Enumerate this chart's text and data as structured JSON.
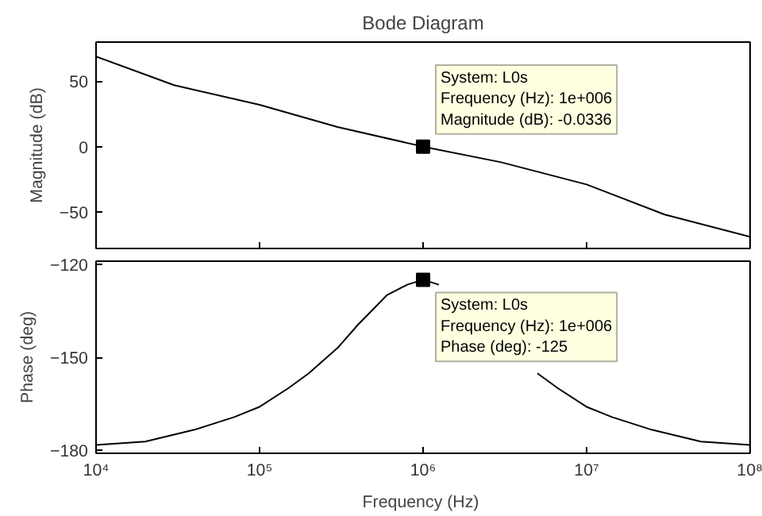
{
  "chart_data": [
    {
      "type": "line",
      "title": "Bode Diagram",
      "ylabel": "Magnitude (dB)",
      "tick_labels": "y",
      "log": "x",
      "grid": false,
      "xlim": [
        10000,
        100000000
      ],
      "xticks": [
        {
          "value": 10000,
          "label": null
        },
        {
          "value": 100000,
          "label": null
        },
        {
          "value": 1000000,
          "label": null
        },
        {
          "value": 10000000,
          "label": null
        },
        {
          "value": 100000000,
          "label": null
        }
      ],
      "ylim": [
        -78,
        80
      ],
      "yticks": [
        -50,
        0,
        50
      ],
      "series": [
        {
          "color": "#000000",
          "x": [
            10000,
            30000,
            100000,
            300000,
            1000000,
            3000000,
            10000000,
            30000000,
            100000000
          ],
          "values": [
            69,
            47,
            32,
            15,
            0,
            -12,
            -29,
            -52,
            -69
          ]
        },
        {
          "type": "scatter",
          "marker": "square",
          "color": "#000000",
          "x": [
            1000000
          ],
          "values": [
            -0.0336
          ]
        }
      ],
      "annotations": [
        {
          "text": "System: L0s\nFrequency (Hz): 1e+006\nMagnitude (dB): -0.0336",
          "x": 1000000,
          "y": -0.0336
        }
      ]
    },
    {
      "type": "line",
      "xlabel": "Frequency  (Hz)",
      "ylabel": "Phase (deg)",
      "log": "x",
      "grid": false,
      "xlim": [
        10000,
        100000000
      ],
      "xticks": [
        {
          "value": 10000,
          "label": "10⁴"
        },
        {
          "value": 100000,
          "label": "10⁵"
        },
        {
          "value": 1000000,
          "label": "10⁶"
        },
        {
          "value": 10000000,
          "label": "10⁷"
        },
        {
          "value": 100000000,
          "label": "10⁸"
        }
      ],
      "ylim": [
        -181,
        -119
      ],
      "yticks": [
        -180,
        -150,
        -120
      ],
      "series": [
        {
          "color": "#000000",
          "x": [
            10000,
            20000,
            40000,
            70000,
            100000,
            150000,
            200000,
            300000,
            400000,
            600000,
            800000,
            1000000,
            1250000,
            1670000,
            2500000,
            3330000,
            5000000,
            6670000,
            10000000,
            14300000,
            25000000,
            50000000,
            100000000
          ],
          "values": [
            -178.3,
            -177.2,
            -173.4,
            -169.3,
            -166,
            -160,
            -155.2,
            -147,
            -139.5,
            -130,
            -126.6,
            -125,
            -126.6,
            null,
            null,
            null,
            -155.2,
            -160,
            -166,
            -169.3,
            -173.4,
            -177.2,
            -178.3
          ]
        },
        {
          "type": "scatter",
          "marker": "square",
          "color": "#000000",
          "x": [
            1000000
          ],
          "values": [
            -125
          ]
        }
      ],
      "annotations": [
        {
          "text": "System: L0s\nFrequency (Hz): 1e+006\nPhase (deg): -125",
          "x": 1000000,
          "y": -125
        }
      ]
    }
  ]
}
